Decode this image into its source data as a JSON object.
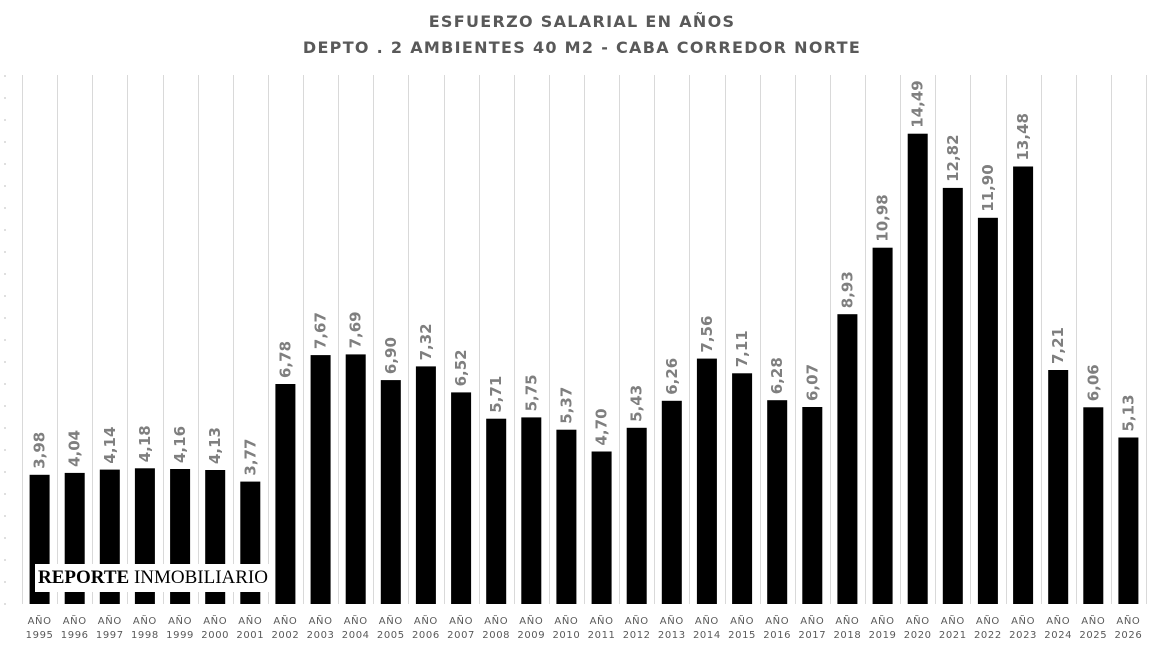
{
  "chart_data": {
    "type": "bar",
    "title": "ESFUERZO SALARIAL EN AÑOS",
    "subtitle": "DEPTO . 2 AMBIENTES 40 M2 - CABA CORREDOR NORTE",
    "xlabel": "",
    "ylabel": "",
    "ylim": [
      0,
      16.3
    ],
    "grid": "vertical",
    "legend": "none",
    "bar_color": "#000000",
    "categories": [
      "AÑO 1995",
      "AÑO 1996",
      "AÑO 1997",
      "AÑO 1998",
      "AÑO 1999",
      "AÑO 2000",
      "AÑO 2001",
      "AÑO 2002",
      "AÑO 2003",
      "AÑO 2004",
      "AÑO 2005",
      "AÑO 2006",
      "AÑO 2007",
      "AÑO 2008",
      "AÑO 2009",
      "AÑO 2010",
      "AÑO 2011",
      "AÑO 2012",
      "AÑO 2013",
      "AÑO 2014",
      "AÑO 2015",
      "AÑO 2016",
      "AÑO 2017",
      "AÑO 2018",
      "AÑO 2019",
      "AÑO 2020",
      "AÑO 2021",
      "AÑO 2022",
      "AÑO 2023",
      "AÑO 2024",
      "AÑO 2025",
      "AÑO 2026"
    ],
    "values": [
      3.98,
      4.04,
      4.14,
      4.18,
      4.16,
      4.13,
      3.77,
      6.78,
      7.67,
      7.69,
      6.9,
      7.32,
      6.52,
      5.71,
      5.75,
      5.37,
      4.7,
      5.43,
      6.26,
      7.56,
      7.11,
      6.28,
      6.07,
      8.93,
      10.98,
      14.49,
      12.82,
      11.9,
      13.48,
      7.21,
      6.06,
      5.13
    ],
    "data_labels": [
      "3,98",
      "4,04",
      "4,14",
      "4,18",
      "4,16",
      "4,13",
      "3,77",
      "6,78",
      "7,67",
      "7,69",
      "6,90",
      "7,32",
      "6,52",
      "5,71",
      "5,75",
      "5,37",
      "4,70",
      "5,43",
      "6,26",
      "7,56",
      "7,11",
      "6,28",
      "6,07",
      "8,93",
      "10,98",
      "14,49",
      "12,82",
      "11,90",
      "13,48",
      "7,21",
      "6,06",
      "5,13"
    ]
  },
  "watermark": {
    "bold_part": "REPORTE",
    "regular_part": "INMOBILIARIO"
  }
}
